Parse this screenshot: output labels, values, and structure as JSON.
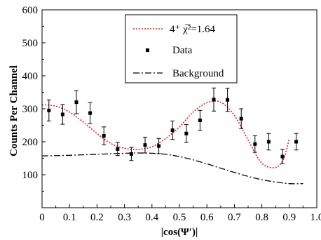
{
  "chart_data": {
    "type": "scatter",
    "xlabel": "|cos(Ψ′)|",
    "ylabel": "Counts Per Channel",
    "xlim": [
      0,
      1.0
    ],
    "ylim": [
      0,
      600
    ],
    "x_ticks": [
      0,
      0.1,
      0.2,
      0.3,
      0.4,
      0.5,
      0.6,
      0.7,
      0.8,
      0.9,
      1.0
    ],
    "x_tick_labels": [
      "0",
      "0.1",
      "0.2",
      "0.3",
      "0.4",
      "0.5",
      "0.6",
      "0.7",
      "0.8",
      "0.9",
      "1.0"
    ],
    "y_ticks": [
      100,
      200,
      300,
      400,
      500,
      600
    ],
    "y_tick_labels": [
      "100",
      "200",
      "300",
      "400",
      "500",
      "600"
    ],
    "legend_position": "top-right",
    "series": [
      {
        "name": "4⁺  χ̅²=1.64",
        "style": "dotted-line",
        "color": "#e8201a",
        "x": [
          0.0,
          0.05,
          0.1,
          0.15,
          0.2,
          0.25,
          0.3,
          0.35,
          0.4,
          0.45,
          0.5,
          0.55,
          0.6,
          0.65,
          0.7,
          0.75,
          0.8,
          0.85,
          0.88,
          0.9
        ],
        "y": [
          312,
          308,
          290,
          260,
          225,
          195,
          180,
          177,
          185,
          210,
          245,
          290,
          318,
          320,
          280,
          205,
          135,
          122,
          150,
          210
        ]
      },
      {
        "name": "Data",
        "style": "markers",
        "color": "#000000",
        "x": [
          0.025,
          0.075,
          0.125,
          0.175,
          0.225,
          0.275,
          0.325,
          0.375,
          0.425,
          0.475,
          0.525,
          0.575,
          0.625,
          0.675,
          0.725,
          0.775,
          0.825,
          0.875,
          0.925
        ],
        "y": [
          295,
          283,
          320,
          287,
          218,
          178,
          163,
          190,
          187,
          235,
          225,
          265,
          328,
          327,
          270,
          193,
          200,
          155,
          200
        ],
        "err": [
          32,
          30,
          35,
          32,
          27,
          20,
          20,
          24,
          23,
          28,
          27,
          30,
          35,
          35,
          30,
          25,
          25,
          22,
          25
        ]
      },
      {
        "name": "Background",
        "style": "dash-dot-line",
        "color": "#000000",
        "x": [
          0.0,
          0.1,
          0.2,
          0.3,
          0.35,
          0.4,
          0.45,
          0.5,
          0.55,
          0.6,
          0.65,
          0.7,
          0.75,
          0.8,
          0.85,
          0.9,
          0.95
        ],
        "y": [
          157,
          159,
          162,
          165,
          166,
          165,
          162,
          155,
          145,
          133,
          120,
          107,
          95,
          85,
          78,
          73,
          73
        ]
      }
    ]
  }
}
